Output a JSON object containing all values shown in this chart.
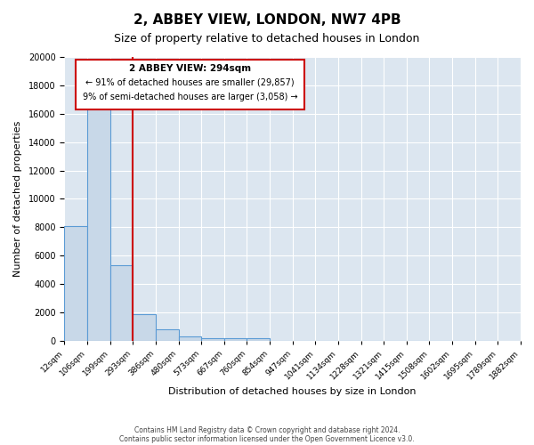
{
  "title": "2, ABBEY VIEW, LONDON, NW7 4PB",
  "subtitle": "Size of property relative to detached houses in London",
  "xlabel": "Distribution of detached houses by size in London",
  "ylabel": "Number of detached properties",
  "bar_values": [
    8100,
    16600,
    5300,
    1900,
    800,
    300,
    200,
    150,
    150,
    0,
    0,
    0,
    0,
    0,
    0,
    0,
    0,
    0,
    0
  ],
  "bin_labels": [
    "12sqm",
    "106sqm",
    "199sqm",
    "293sqm",
    "386sqm",
    "480sqm",
    "573sqm",
    "667sqm",
    "760sqm",
    "854sqm",
    "947sqm",
    "1041sqm",
    "1134sqm",
    "1228sqm",
    "1321sqm",
    "1415sqm",
    "1508sqm",
    "1602sqm",
    "1695sqm",
    "1789sqm",
    "1882sqm"
  ],
  "bar_color": "#c8d8e8",
  "bar_edge_color": "#5b9bd5",
  "red_line_x": 3,
  "red_line_color": "#cc0000",
  "ylim": [
    0,
    20000
  ],
  "yticks": [
    0,
    2000,
    4000,
    6000,
    8000,
    10000,
    12000,
    14000,
    16000,
    18000,
    20000
  ],
  "annotation_title": "2 ABBEY VIEW: 294sqm",
  "annotation_line1": "← 91% of detached houses are smaller (29,857)",
  "annotation_line2": "9% of semi-detached houses are larger (3,058) →",
  "annotation_box_color": "#cc0000",
  "background_color": "#dce6f0",
  "footer_line1": "Contains HM Land Registry data © Crown copyright and database right 2024.",
  "footer_line2": "Contains public sector information licensed under the Open Government Licence v3.0."
}
